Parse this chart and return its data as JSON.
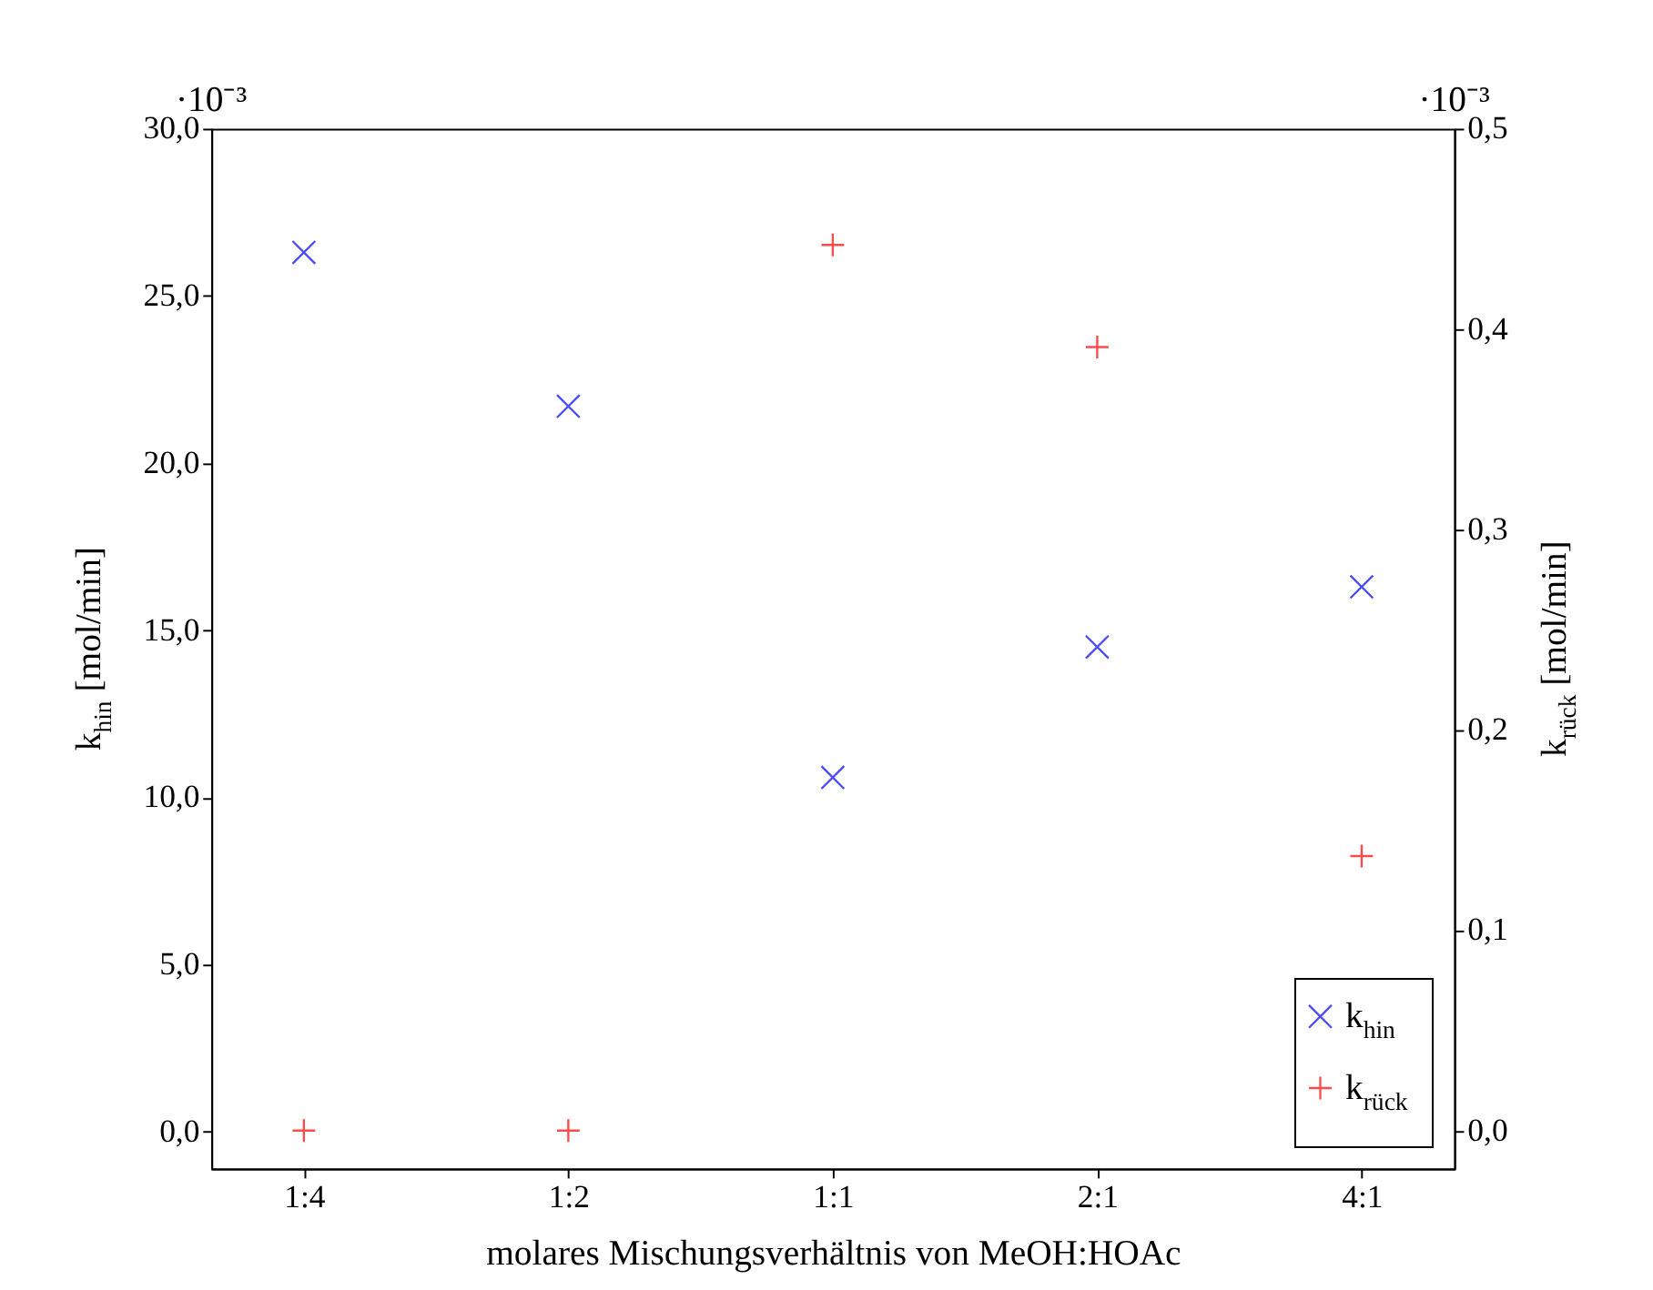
{
  "chart_data": {
    "type": "scatter",
    "xlabel": "molares Mischungsverhältnis von MeOH:HOAc",
    "ylabel": "k$_{hin}$ [mol/min]",
    "y2label": "k$_{rück}$ [mol/min]",
    "categories": [
      "1:4",
      "1:2",
      "1:1",
      "2:1",
      "4:1"
    ],
    "ylim": [
      -1.1,
      30
    ],
    "yticks": [
      {
        "value": 0,
        "label": "0,0"
      },
      {
        "value": 5,
        "label": "5,0"
      },
      {
        "value": 10,
        "label": "10,0"
      },
      {
        "value": 15,
        "label": "15,0"
      },
      {
        "value": 20,
        "label": "20,0"
      },
      {
        "value": 25,
        "label": "25,0"
      },
      {
        "value": 30,
        "label": "30,0"
      }
    ],
    "y2lim": [
      -0.019,
      0.5
    ],
    "y2ticks": [
      {
        "value": 0,
        "label": "0,0"
      },
      {
        "value": 0.1,
        "label": "0,1"
      },
      {
        "value": 0.2,
        "label": "0,2"
      },
      {
        "value": 0.3,
        "label": "0,3"
      },
      {
        "value": 0.4,
        "label": "0,4"
      },
      {
        "value": 0.5,
        "label": "0,5"
      }
    ],
    "series": [
      {
        "name": "k$_{hin}$",
        "color": "#0000ff",
        "marker": "cross",
        "values": [
          26.3,
          21.7,
          10.6,
          14.5,
          16.3
        ]
      },
      {
        "name": "k$_{rück}$",
        "color": "#ff0000",
        "marker": "plus",
        "axis": "y2",
        "values": [
          0,
          0,
          0.442,
          0.391,
          0.137
        ]
      }
    ],
    "annotations": [
      "·10⁻³",
      "·10⁻³"
    ],
    "grid": false,
    "legend": "bottom right"
  }
}
